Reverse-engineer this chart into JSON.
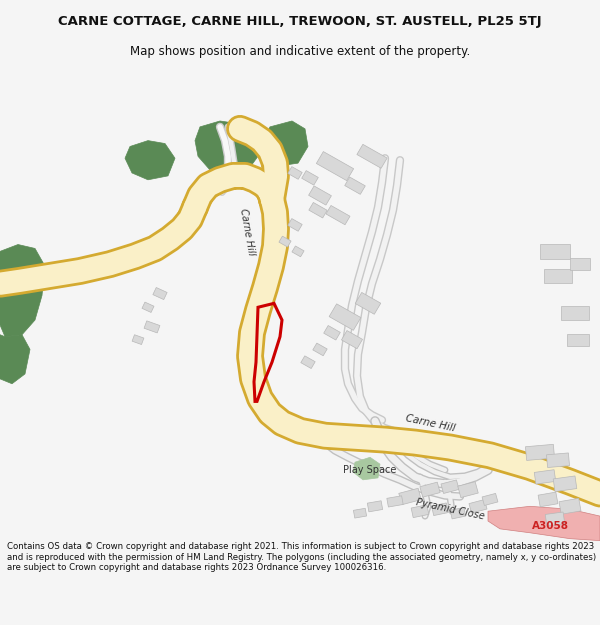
{
  "title": "CARNE COTTAGE, CARNE HILL, TREWOON, ST. AUSTELL, PL25 5TJ",
  "subtitle": "Map shows position and indicative extent of the property.",
  "footer": "Contains OS data © Crown copyright and database right 2021. This information is subject to Crown copyright and database rights 2023 and is reproduced with the permission of HM Land Registry. The polygons (including the associated geometry, namely x, y co-ordinates) are subject to Crown copyright and database rights 2023 Ordnance Survey 100026316.",
  "bg_color": "#f5f5f5",
  "map_bg": "#ffffff",
  "road_fill": "#faf0c8",
  "road_border": "#d4aa30",
  "road_fill2": "#f0f0f0",
  "road_border2": "#c0c0c0",
  "green_dark": "#5a8a55",
  "green_light": "#a8c8a0",
  "building_fill": "#d8d8d8",
  "building_edge": "#b8b8b8",
  "red_color": "#cc0000",
  "pink_fill": "#f0b0b0",
  "pink_edge": "#d08080",
  "label_color": "#333333"
}
